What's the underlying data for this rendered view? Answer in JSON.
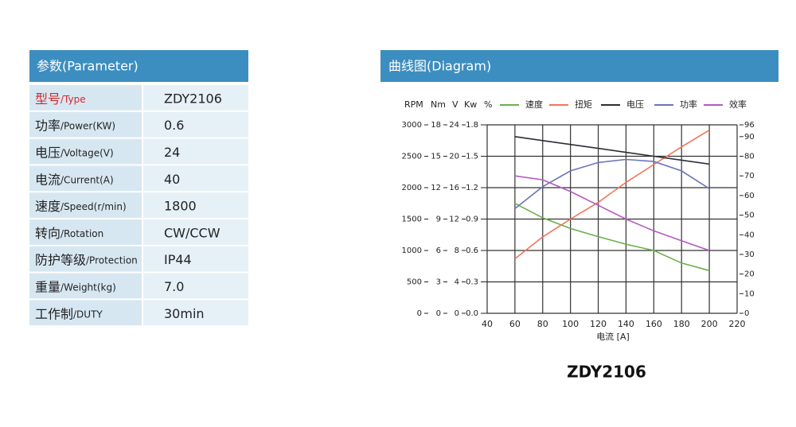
{
  "table": {
    "title": "参数(Parameter)",
    "rows": [
      {
        "zh": "型号",
        "en": "/Type",
        "value": "ZDY2106"
      },
      {
        "zh": "功率",
        "en": "/Power(KW)",
        "value": "0.6"
      },
      {
        "zh": "电压",
        "en": "/Voltage(V)",
        "value": "24"
      },
      {
        "zh": "电流",
        "en": "/Current(A)",
        "value": "40"
      },
      {
        "zh": "速度",
        "en": "/Speed(r/min)",
        "value": "1800"
      },
      {
        "zh": "转向",
        "en": "/Rotation",
        "value": "CW/CCW"
      },
      {
        "zh": "防护等级",
        "en": "/Protection",
        "value": "IP44"
      },
      {
        "zh": "重量",
        "en": "/Weight(kg)",
        "value": "7.0"
      },
      {
        "zh": "工作制",
        "en": "/DUTY",
        "value": "30min"
      }
    ]
  },
  "diagram": {
    "title": "曲线图(Diagram)",
    "caption": "ZDY2106"
  },
  "chart_data": {
    "type": "line",
    "x": [
      60,
      80,
      100,
      120,
      140,
      160,
      180,
      200
    ],
    "xlim": [
      40,
      220
    ],
    "xticks": [
      40,
      60,
      80,
      100,
      120,
      140,
      160,
      180,
      200,
      220
    ],
    "xlabel": "电流 [A]",
    "yaxes": [
      {
        "name": "RPM",
        "lim": [
          0,
          3000
        ],
        "ticks": [
          0,
          500,
          1000,
          1500,
          2000,
          2500,
          3000
        ]
      },
      {
        "name": "Nm",
        "lim": [
          0,
          18
        ],
        "ticks": [
          0,
          3,
          6,
          9,
          12,
          15,
          18
        ]
      },
      {
        "name": "V",
        "lim": [
          0,
          24
        ],
        "ticks": [
          0,
          4,
          8,
          12,
          16,
          20,
          24
        ]
      },
      {
        "name": "Kw",
        "lim": [
          0,
          1.8
        ],
        "ticks": [
          {
            "value": 0,
            "label": "0.0"
          },
          0.3,
          0.6,
          0.9,
          1.2,
          1.5,
          1.8
        ]
      }
    ],
    "y2": {
      "name": "%",
      "lim": [
        0,
        96
      ],
      "ticks": [
        0,
        10,
        20,
        30,
        40,
        50,
        60,
        70,
        80,
        90,
        96
      ]
    },
    "grid": true,
    "series": [
      {
        "name": "速度",
        "color": "#6ab04c",
        "axis": 0,
        "values": [
          1750,
          1520,
          1350,
          1220,
          1100,
          1000,
          800,
          680
        ]
      },
      {
        "name": "扭矩",
        "color": "#f0745a",
        "axis": 1,
        "values": [
          5.2,
          7.3,
          9.0,
          10.6,
          12.5,
          14.2,
          15.9,
          17.5
        ]
      },
      {
        "name": "电压",
        "color": "#2b2f36",
        "axis": 2,
        "values": [
          22.5,
          22.0,
          21.5,
          21.0,
          20.5,
          20.0,
          19.5,
          19.0
        ]
      },
      {
        "name": "功率",
        "color": "#6a76b8",
        "axis": 3,
        "values": [
          1.0,
          1.21,
          1.36,
          1.44,
          1.47,
          1.45,
          1.36,
          1.19
        ]
      },
      {
        "name": "效率",
        "color": "#b45ac0",
        "axis": "y2",
        "values": [
          70,
          68,
          62,
          55,
          48,
          42,
          37,
          32
        ]
      }
    ]
  }
}
